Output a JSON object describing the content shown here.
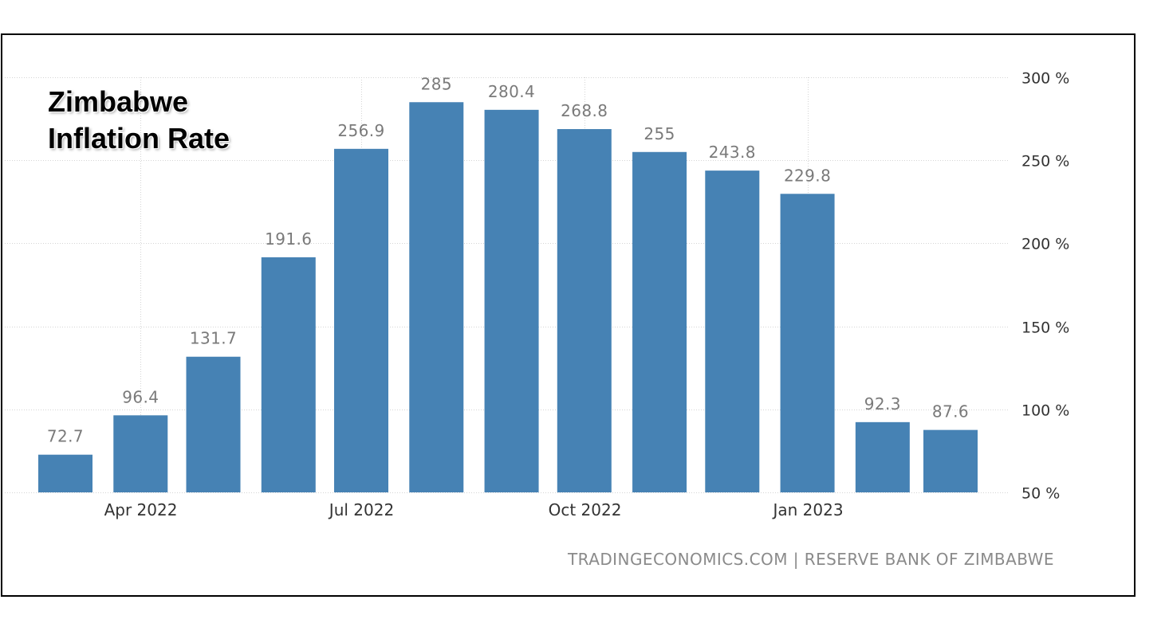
{
  "chart_data": {
    "type": "bar",
    "title": "Zimbabwe Inflation Rate",
    "x": [
      "2022-03",
      "2022-04",
      "2022-05",
      "2022-06",
      "2022-07",
      "2022-08",
      "2022-09",
      "2022-10",
      "2022-11",
      "2022-12",
      "2023-01",
      "2023-02",
      "2023-03"
    ],
    "series": [
      {
        "values": [
          72.7,
          96.4,
          131.7,
          191.6,
          256.9,
          285,
          280.4,
          268.8,
          255,
          243.8,
          229.8,
          92.3,
          87.6
        ],
        "color": "#4682b4"
      }
    ],
    "ylim": [
      50,
      300
    ],
    "yticks": [
      {
        "value": 300,
        "label": "300 %"
      },
      {
        "value": 250,
        "label": "250 %"
      },
      {
        "value": 200,
        "label": "200 %"
      },
      {
        "value": 150,
        "label": "150 %"
      },
      {
        "value": 100,
        "label": "100 %"
      },
      {
        "value": 50,
        "label": "50 %"
      }
    ],
    "xticks": [
      {
        "date": "2022-04",
        "label": "Apr 2022"
      },
      {
        "date": "2022-07",
        "label": "Jul 2022"
      },
      {
        "date": "2022-10",
        "label": "Oct 2022"
      },
      {
        "date": "2023-01",
        "label": "Jan 2023"
      }
    ],
    "grid": true,
    "data_labels": true,
    "source": "TRADINGECONOMICS.COM | RESERVE BANK OF ZIMBABWE"
  }
}
